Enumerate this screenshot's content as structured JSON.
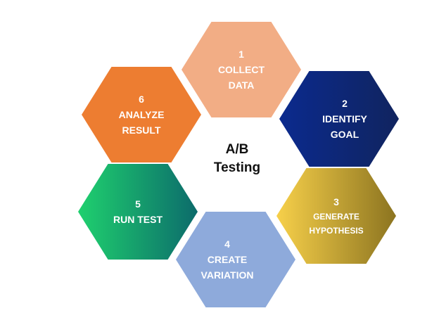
{
  "center": {
    "line1": "A/B",
    "line2": "Testing"
  },
  "steps": [
    {
      "number": "1",
      "line1": "COLLECT",
      "line2": "DATA",
      "color": "#f2ad85"
    },
    {
      "number": "2",
      "line1": "IDENTIFY",
      "line2": "GOAL",
      "color_from": "#0b2a8e",
      "color_to": "#10245f"
    },
    {
      "number": "3",
      "line1": "GENERATE",
      "line2": "HYPOTHESIS",
      "color_from": "#f7d04a",
      "color_to": "#8c7420"
    },
    {
      "number": "4",
      "line1": "CREATE",
      "line2": "VARIATION",
      "color": "#8eaadb"
    },
    {
      "number": "5",
      "line1": "RUN TEST",
      "color_from": "#1fd06e",
      "color_to": "#0c6b6b"
    },
    {
      "number": "6",
      "line1": "ANALYZE",
      "line2": "RESULT",
      "color": "#ed7d31"
    }
  ]
}
